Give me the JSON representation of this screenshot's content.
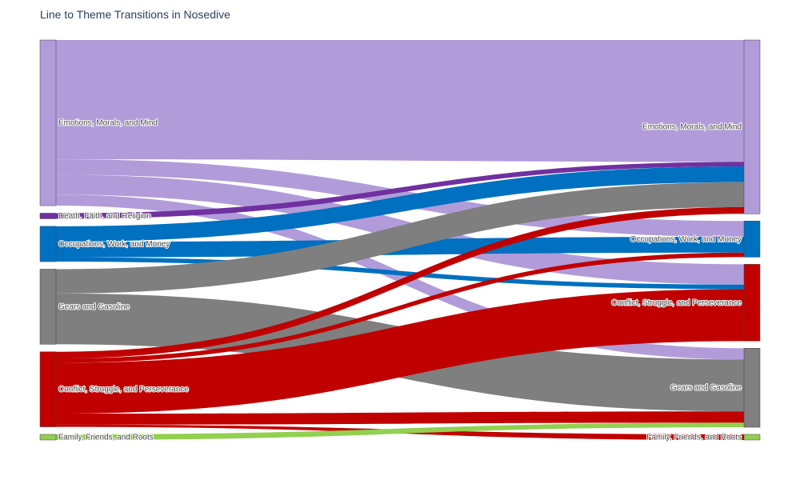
{
  "chart_data": {
    "type": "sankey",
    "title": "Line to Theme Transitions in Nosedive",
    "source_nodes": [
      {
        "id": "s_emotions",
        "label": "Emotions, Morals, and Mind",
        "color": "#b19cd9"
      },
      {
        "id": "s_death",
        "label": "Death, Faith, and Religion",
        "color": "#7030a0"
      },
      {
        "id": "s_occupations",
        "label": "Occupations, Work, and Money",
        "color": "#0070c0"
      },
      {
        "id": "s_gears",
        "label": "Gears and Gasoline",
        "color": "#7f7f7f"
      },
      {
        "id": "s_conflict",
        "label": "Conflict, Struggle, and Perseverance",
        "color": "#c00000"
      },
      {
        "id": "s_family",
        "label": "Family, Friends, and Roots",
        "color": "#92d050"
      }
    ],
    "target_nodes": [
      {
        "id": "t_emotions",
        "label": "Emotions, Morals, and Mind",
        "color": "#b19cd9"
      },
      {
        "id": "t_occupations",
        "label": "Occupations, Work, and Money",
        "color": "#0070c0"
      },
      {
        "id": "t_conflict",
        "label": "Conflict, Struggle, and Perseverance",
        "color": "#c00000"
      },
      {
        "id": "t_gears",
        "label": "Gears and Gasoline",
        "color": "#7f7f7f"
      },
      {
        "id": "t_family",
        "label": "Family, Friends, and Roots",
        "color": "#92d050"
      }
    ],
    "links": [
      {
        "source": "s_emotions",
        "target": "t_emotions",
        "value": 54
      },
      {
        "source": "s_emotions",
        "target": "t_occupations",
        "value": 7
      },
      {
        "source": "s_emotions",
        "target": "t_conflict",
        "value": 9
      },
      {
        "source": "s_emotions",
        "target": "t_gears",
        "value": 5
      },
      {
        "source": "s_death",
        "target": "t_emotions",
        "value": 2
      },
      {
        "source": "s_occupations",
        "target": "t_emotions",
        "value": 7
      },
      {
        "source": "s_occupations",
        "target": "t_occupations",
        "value": 7
      },
      {
        "source": "s_occupations",
        "target": "t_conflict",
        "value": 2
      },
      {
        "source": "s_gears",
        "target": "t_emotions",
        "value": 11
      },
      {
        "source": "s_gears",
        "target": "t_gears",
        "value": 23
      },
      {
        "source": "s_conflict",
        "target": "t_emotions",
        "value": 3
      },
      {
        "source": "s_conflict",
        "target": "t_occupations",
        "value": 2
      },
      {
        "source": "s_conflict",
        "target": "t_conflict",
        "value": 23
      },
      {
        "source": "s_conflict",
        "target": "t_gears",
        "value": 5
      },
      {
        "source": "s_conflict",
        "target": "t_family",
        "value": 1
      },
      {
        "source": "s_family",
        "target": "t_gears",
        "value": 2
      }
    ]
  }
}
